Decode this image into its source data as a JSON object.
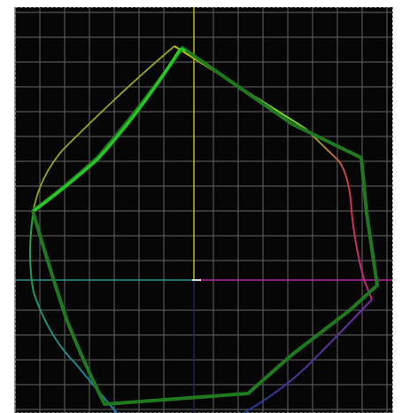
{
  "scope": {
    "view": "vectorscope",
    "colors": {
      "background": "#050505",
      "grid": "#555555",
      "border_dashed": "#7a7a7a",
      "graticule_vertical": "#c8c800",
      "graticule_horizontal_left": "#2e8f90",
      "graticule_horizontal_right": "#b0269c",
      "graticule_vertical_lower": "#1e2a55",
      "center_mark": "#d8d8d8",
      "trace_primary": "#1f7a1f",
      "trace_highlight": "#22cc22"
    }
  }
}
